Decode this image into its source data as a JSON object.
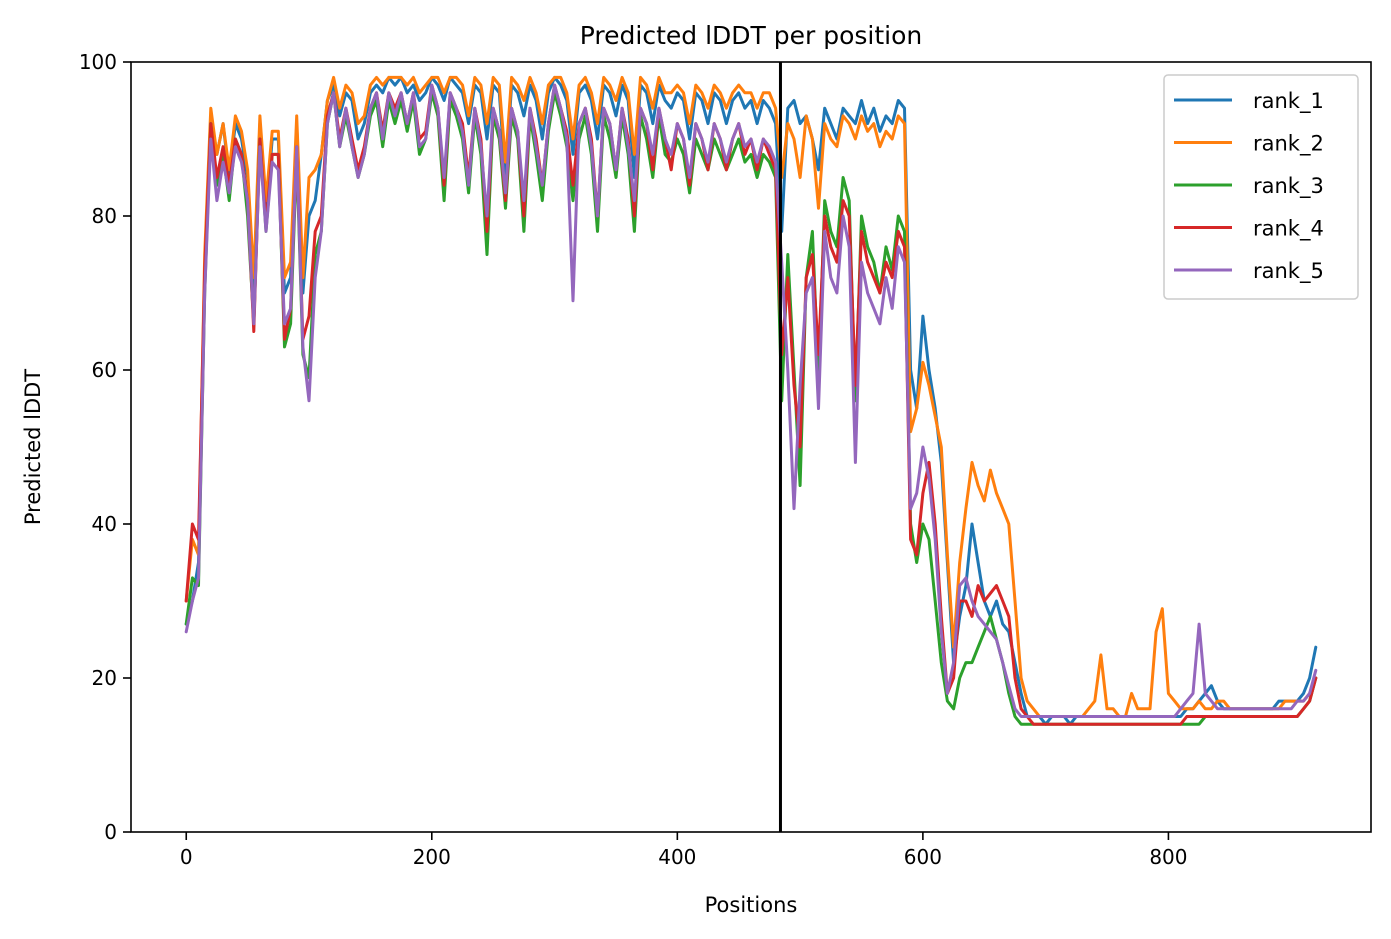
{
  "chart_data": {
    "type": "line",
    "title": "Predicted lDDT per position",
    "xlabel": "Positions",
    "ylabel": "Predicted lDDT",
    "xlim": [
      -45,
      965
    ],
    "ylim": [
      0,
      100
    ],
    "xticks": [
      0,
      200,
      400,
      600,
      800
    ],
    "yticks": [
      0,
      20,
      40,
      60,
      80,
      100
    ],
    "grid": false,
    "legend": "top-right",
    "vline_x": 484,
    "x": [
      0,
      5,
      10,
      15,
      20,
      25,
      30,
      35,
      40,
      45,
      50,
      55,
      60,
      65,
      70,
      75,
      80,
      85,
      90,
      95,
      100,
      105,
      110,
      115,
      120,
      125,
      130,
      135,
      140,
      145,
      150,
      155,
      160,
      165,
      170,
      175,
      180,
      185,
      190,
      195,
      200,
      205,
      210,
      215,
      220,
      225,
      230,
      235,
      240,
      245,
      250,
      255,
      260,
      265,
      270,
      275,
      280,
      285,
      290,
      295,
      300,
      305,
      310,
      315,
      320,
      325,
      330,
      335,
      340,
      345,
      350,
      355,
      360,
      365,
      370,
      375,
      380,
      385,
      390,
      395,
      400,
      405,
      410,
      415,
      420,
      425,
      430,
      435,
      440,
      445,
      450,
      455,
      460,
      465,
      470,
      475,
      480,
      485,
      490,
      495,
      500,
      505,
      510,
      515,
      520,
      525,
      530,
      535,
      540,
      545,
      550,
      555,
      560,
      565,
      570,
      575,
      580,
      585,
      590,
      595,
      600,
      605,
      610,
      615,
      620,
      625,
      630,
      635,
      640,
      645,
      650,
      655,
      660,
      665,
      670,
      675,
      680,
      685,
      690,
      695,
      700,
      705,
      710,
      715,
      720,
      725,
      730,
      735,
      740,
      745,
      750,
      755,
      760,
      765,
      770,
      775,
      780,
      785,
      790,
      795,
      800,
      805,
      810,
      815,
      820,
      825,
      830,
      835,
      840,
      845,
      850,
      855,
      860,
      865,
      870,
      875,
      880,
      885,
      890,
      895,
      900,
      905,
      910,
      915,
      920
    ],
    "series": [
      {
        "name": "rank_1",
        "color": "#1f77b4",
        "values": [
          27,
          30,
          35,
          72,
          93,
          88,
          92,
          85,
          92,
          90,
          85,
          70,
          92,
          80,
          90,
          90,
          70,
          72,
          92,
          70,
          80,
          82,
          88,
          95,
          97,
          93,
          96,
          95,
          90,
          92,
          96,
          97,
          96,
          98,
          97,
          98,
          96,
          97,
          95,
          96,
          98,
          97,
          95,
          98,
          97,
          96,
          92,
          97,
          96,
          90,
          97,
          96,
          85,
          97,
          96,
          93,
          97,
          95,
          90,
          96,
          98,
          97,
          95,
          88,
          96,
          97,
          95,
          90,
          97,
          96,
          93,
          97,
          95,
          85,
          97,
          96,
          92,
          97,
          95,
          94,
          96,
          95,
          90,
          96,
          95,
          92,
          96,
          95,
          92,
          95,
          96,
          94,
          95,
          92,
          95,
          94,
          92,
          78,
          94,
          95,
          92,
          93,
          90,
          86,
          94,
          92,
          90,
          94,
          93,
          92,
          95,
          92,
          94,
          91,
          93,
          92,
          95,
          94,
          60,
          55,
          67,
          60,
          55,
          48,
          35,
          22,
          28,
          32,
          40,
          35,
          30,
          28,
          30,
          27,
          26,
          22,
          18,
          15,
          15,
          15,
          14,
          15,
          15,
          15,
          14,
          15,
          15,
          15,
          15,
          15,
          15,
          15,
          15,
          15,
          15,
          15,
          15,
          15,
          15,
          15,
          15,
          15,
          15,
          16,
          16,
          17,
          18,
          19,
          17,
          16,
          16,
          16,
          16,
          16,
          16,
          16,
          16,
          16,
          17,
          17,
          17,
          17,
          18,
          20,
          24
        ]
      },
      {
        "name": "rank_2",
        "color": "#ff7f0e",
        "values": [
          30,
          38,
          36,
          75,
          94,
          88,
          92,
          86,
          93,
          91,
          86,
          72,
          93,
          82,
          91,
          91,
          72,
          74,
          93,
          72,
          85,
          86,
          88,
          95,
          98,
          94,
          97,
          96,
          92,
          93,
          97,
          98,
          97,
          98,
          98,
          98,
          97,
          98,
          96,
          97,
          98,
          98,
          96,
          98,
          98,
          97,
          93,
          98,
          97,
          92,
          98,
          97,
          87,
          98,
          97,
          95,
          98,
          96,
          92,
          97,
          98,
          98,
          96,
          90,
          97,
          98,
          96,
          92,
          98,
          97,
          95,
          98,
          96,
          88,
          98,
          97,
          94,
          98,
          96,
          96,
          97,
          96,
          92,
          97,
          96,
          94,
          97,
          96,
          94,
          96,
          97,
          96,
          96,
          94,
          96,
          96,
          94,
          85,
          92,
          90,
          85,
          93,
          90,
          81,
          92,
          90,
          89,
          93,
          92,
          90,
          93,
          91,
          92,
          89,
          91,
          90,
          93,
          92,
          52,
          55,
          61,
          58,
          54,
          50,
          36,
          24,
          35,
          42,
          48,
          45,
          43,
          47,
          44,
          42,
          40,
          30,
          20,
          17,
          16,
          15,
          15,
          15,
          15,
          15,
          15,
          15,
          15,
          16,
          17,
          23,
          16,
          16,
          15,
          15,
          18,
          16,
          16,
          16,
          26,
          29,
          18,
          17,
          16,
          16,
          16,
          17,
          16,
          16,
          17,
          17,
          16,
          16,
          16,
          16,
          16,
          16,
          16,
          16,
          16,
          17,
          17,
          17,
          17,
          18,
          20
        ]
      },
      {
        "name": "rank_3",
        "color": "#2ca02c",
        "values": [
          27,
          33,
          32,
          70,
          92,
          84,
          88,
          82,
          90,
          88,
          80,
          66,
          90,
          78,
          88,
          88,
          63,
          66,
          88,
          62,
          59,
          75,
          78,
          92,
          96,
          89,
          93,
          89,
          85,
          88,
          93,
          95,
          89,
          95,
          92,
          95,
          91,
          95,
          88,
          90,
          96,
          93,
          82,
          95,
          93,
          90,
          83,
          93,
          88,
          75,
          93,
          90,
          81,
          93,
          90,
          78,
          93,
          88,
          82,
          91,
          96,
          93,
          89,
          82,
          90,
          93,
          88,
          78,
          93,
          90,
          85,
          93,
          88,
          78,
          93,
          90,
          85,
          93,
          88,
          87,
          90,
          88,
          83,
          90,
          88,
          86,
          90,
          88,
          86,
          88,
          90,
          87,
          88,
          85,
          88,
          87,
          85,
          56,
          75,
          60,
          45,
          72,
          78,
          59,
          82,
          78,
          76,
          85,
          82,
          56,
          80,
          76,
          74,
          70,
          76,
          73,
          80,
          78,
          40,
          35,
          40,
          38,
          30,
          22,
          17,
          16,
          20,
          22,
          22,
          24,
          26,
          28,
          25,
          22,
          18,
          15,
          14,
          14,
          14,
          14,
          14,
          14,
          14,
          14,
          14,
          14,
          14,
          14,
          14,
          14,
          14,
          14,
          14,
          14,
          14,
          14,
          14,
          14,
          14,
          14,
          14,
          14,
          14,
          14,
          14,
          14,
          15,
          15,
          15,
          15,
          15,
          15,
          15,
          15,
          15,
          15,
          15,
          15,
          15,
          15,
          15,
          15,
          16,
          17,
          20
        ]
      },
      {
        "name": "rank_4",
        "color": "#d62728",
        "values": [
          30,
          40,
          38,
          73,
          92,
          85,
          89,
          84,
          90,
          88,
          82,
          65,
          90,
          79,
          88,
          88,
          64,
          68,
          89,
          64,
          67,
          78,
          80,
          93,
          96,
          90,
          94,
          90,
          86,
          89,
          94,
          96,
          91,
          96,
          94,
          96,
          92,
          96,
          90,
          91,
          97,
          94,
          84,
          96,
          94,
          92,
          85,
          94,
          90,
          78,
          94,
          91,
          82,
          94,
          91,
          80,
          94,
          90,
          84,
          92,
          97,
          94,
          91,
          84,
          92,
          94,
          90,
          80,
          94,
          92,
          86,
          94,
          90,
          80,
          94,
          92,
          86,
          94,
          90,
          86,
          92,
          90,
          84,
          92,
          90,
          86,
          92,
          90,
          86,
          90,
          92,
          88,
          90,
          86,
          90,
          88,
          86,
          62,
          72,
          58,
          50,
          72,
          75,
          62,
          80,
          76,
          74,
          82,
          80,
          58,
          78,
          74,
          72,
          70,
          74,
          72,
          78,
          76,
          38,
          36,
          44,
          48,
          40,
          28,
          18,
          20,
          30,
          30,
          28,
          32,
          30,
          31,
          32,
          30,
          28,
          20,
          16,
          15,
          14,
          14,
          14,
          14,
          14,
          14,
          14,
          14,
          14,
          14,
          14,
          14,
          14,
          14,
          14,
          14,
          14,
          14,
          14,
          14,
          14,
          14,
          14,
          14,
          14,
          15,
          15,
          15,
          15,
          15,
          15,
          15,
          15,
          15,
          15,
          15,
          15,
          15,
          15,
          15,
          15,
          15,
          15,
          15,
          16,
          17,
          20
        ]
      },
      {
        "name": "rank_5",
        "color": "#9467bd",
        "values": [
          26,
          30,
          33,
          70,
          90,
          82,
          87,
          83,
          89,
          87,
          82,
          66,
          89,
          78,
          87,
          86,
          66,
          68,
          89,
          63,
          56,
          72,
          78,
          92,
          96,
          89,
          94,
          89,
          85,
          88,
          94,
          96,
          90,
          96,
          93,
          96,
          92,
          96,
          89,
          90,
          97,
          94,
          85,
          96,
          94,
          91,
          84,
          94,
          89,
          80,
          94,
          91,
          83,
          94,
          91,
          82,
          94,
          89,
          84,
          92,
          97,
          94,
          90,
          69,
          92,
          94,
          89,
          80,
          94,
          92,
          86,
          94,
          89,
          82,
          94,
          92,
          88,
          94,
          90,
          88,
          92,
          90,
          85,
          92,
          90,
          87,
          92,
          90,
          87,
          90,
          92,
          89,
          90,
          87,
          90,
          89,
          87,
          74,
          60,
          42,
          58,
          70,
          72,
          55,
          78,
          72,
          70,
          80,
          76,
          48,
          74,
          70,
          68,
          66,
          72,
          68,
          76,
          74,
          42,
          44,
          50,
          46,
          38,
          26,
          18,
          22,
          32,
          33,
          30,
          28,
          27,
          26,
          25,
          22,
          19,
          16,
          15,
          15,
          15,
          15,
          15,
          15,
          15,
          15,
          15,
          15,
          15,
          15,
          15,
          15,
          15,
          15,
          15,
          15,
          15,
          15,
          15,
          15,
          15,
          15,
          15,
          15,
          16,
          17,
          18,
          27,
          18,
          17,
          16,
          16,
          16,
          16,
          16,
          16,
          16,
          16,
          16,
          16,
          16,
          16,
          16,
          17,
          17,
          18,
          21
        ]
      }
    ]
  }
}
